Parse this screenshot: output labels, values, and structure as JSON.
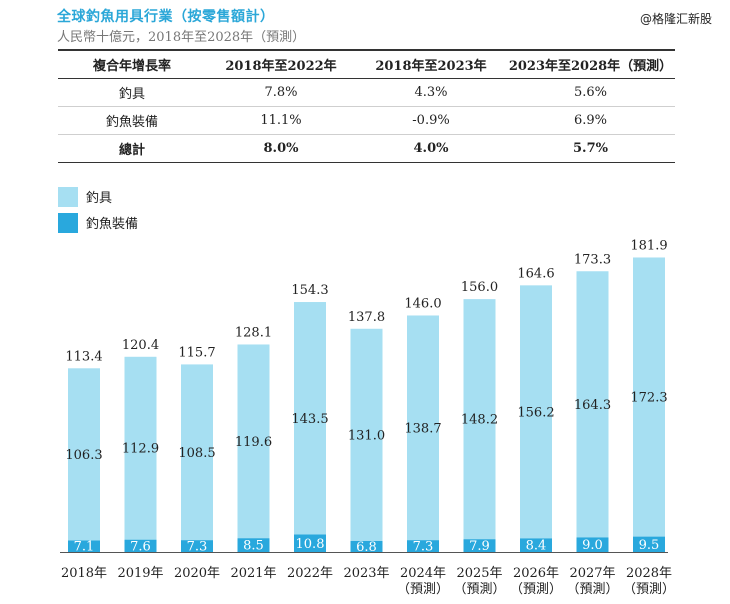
{
  "header": {
    "title": "全球釣魚用具行業（按零售額計）",
    "subtitle": "人民幣十億元，2018年至2028年（預測）",
    "watermark": "@格隆汇新股"
  },
  "growth_table": {
    "headers": [
      "複合年增長率",
      "2018年至2022年",
      "2018年至2023年",
      "2023年至2028年（預測）"
    ],
    "rows": [
      [
        "釣具",
        "7.8%",
        "4.3%",
        "5.6%"
      ],
      [
        "釣魚裝備",
        "11.1%",
        "-0.9%",
        "6.9%"
      ],
      [
        "總計",
        "8.0%",
        "4.0%",
        "5.7%"
      ]
    ]
  },
  "colors": {
    "tackle": "#a6dff2",
    "equipment": "#29a8dd",
    "title": "#2ba7d8"
  },
  "chart_data": {
    "type": "bar",
    "stacked": true,
    "categories": [
      "2018年",
      "2019年",
      "2020年",
      "2021年",
      "2022年",
      "2023年",
      "2024年（預測）",
      "2025年（預測）",
      "2026年（預測）",
      "2027年（預測）",
      "2028年（預測）"
    ],
    "category_lines": [
      [
        "2018年"
      ],
      [
        "2019年"
      ],
      [
        "2020年"
      ],
      [
        "2021年"
      ],
      [
        "2022年"
      ],
      [
        "2023年"
      ],
      [
        "2024年",
        "（預測）"
      ],
      [
        "2025年",
        "（預測）"
      ],
      [
        "2026年",
        "（預測）"
      ],
      [
        "2027年",
        "（預測）"
      ],
      [
        "2028年",
        "（預測）"
      ]
    ],
    "series": [
      {
        "name": "釣魚裝備",
        "values": [
          7.1,
          7.6,
          7.3,
          8.5,
          10.8,
          6.8,
          7.3,
          7.9,
          8.4,
          9.0,
          9.5
        ]
      },
      {
        "name": "釣具",
        "values": [
          106.3,
          112.9,
          108.5,
          119.6,
          143.5,
          131.0,
          138.7,
          148.2,
          156.2,
          164.3,
          172.3
        ]
      }
    ],
    "totals": [
      "113.4",
      "120.4",
      "115.7",
      "128.1",
      "154.3",
      "137.8",
      "146.0",
      "156.0",
      "164.6",
      "173.3",
      "181.9"
    ],
    "legend": [
      "釣具",
      "釣魚裝備"
    ],
    "ylim": [
      0,
      190
    ]
  }
}
